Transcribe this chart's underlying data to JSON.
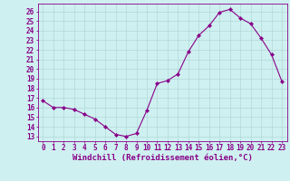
{
  "x": [
    0,
    1,
    2,
    3,
    4,
    5,
    6,
    7,
    8,
    9,
    10,
    11,
    12,
    13,
    14,
    15,
    16,
    17,
    18,
    19,
    20,
    21,
    22,
    23
  ],
  "y": [
    16.7,
    16.0,
    16.0,
    15.8,
    15.3,
    14.8,
    14.0,
    13.2,
    13.0,
    13.3,
    15.7,
    18.5,
    18.8,
    19.5,
    21.8,
    23.5,
    24.5,
    25.9,
    26.2,
    25.3,
    24.7,
    23.2,
    21.5,
    18.7
  ],
  "line_color": "#880088",
  "marker": "D",
  "marker_size": 2.2,
  "bg_color": "#cff0f0",
  "grid_color": "#b0d8d8",
  "xlabel": "Windchill (Refroidissement éolien,°C)",
  "xlabel_fontsize": 6.5,
  "ylabel_ticks": [
    13,
    14,
    15,
    16,
    17,
    18,
    19,
    20,
    21,
    22,
    23,
    24,
    25,
    26
  ],
  "xtick_labels": [
    "0",
    "1",
    "2",
    "3",
    "4",
    "5",
    "6",
    "7",
    "8",
    "9",
    "10",
    "11",
    "12",
    "13",
    "14",
    "15",
    "16",
    "17",
    "18",
    "19",
    "20",
    "21",
    "22",
    "23"
  ],
  "xlim": [
    -0.5,
    23.5
  ],
  "ylim": [
    12.5,
    26.8
  ],
  "tick_fontsize": 5.5,
  "spine_color": "#880088",
  "title": ""
}
